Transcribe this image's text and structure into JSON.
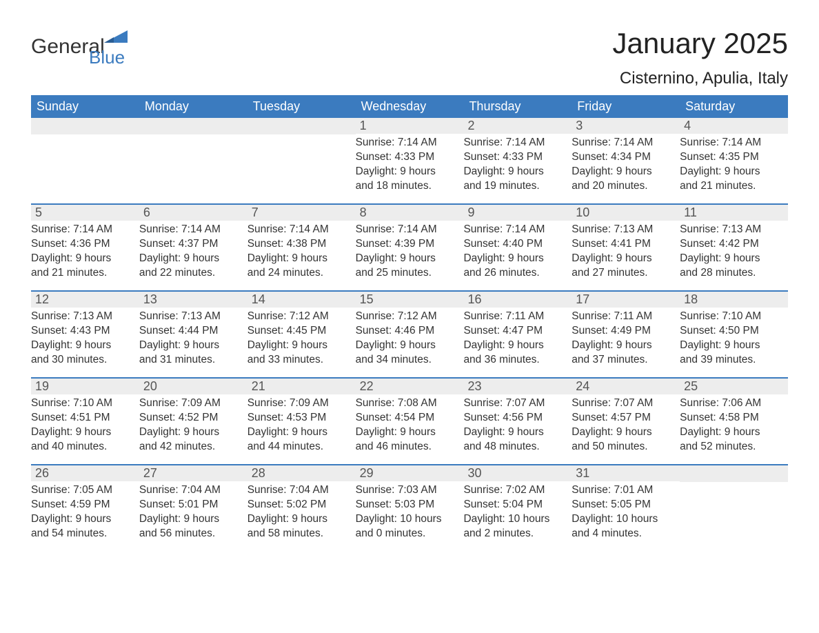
{
  "brand": {
    "word1": "General",
    "word2": "Blue"
  },
  "title": "January 2025",
  "location": "Cisternino, Apulia, Italy",
  "colors": {
    "header_bg": "#3b7bbf",
    "header_text": "#ffffff",
    "daynum_bg": "#ededed",
    "daynum_text": "#555555",
    "body_text": "#333333",
    "rule": "#3b7bbf",
    "page_bg": "#ffffff"
  },
  "fonts": {
    "title_size": 42,
    "location_size": 24,
    "dow_size": 18,
    "daynum_size": 18,
    "info_size": 15.5
  },
  "daysOfWeek": [
    "Sunday",
    "Monday",
    "Tuesday",
    "Wednesday",
    "Thursday",
    "Friday",
    "Saturday"
  ],
  "weeks": [
    [
      {
        "n": "",
        "lines": []
      },
      {
        "n": "",
        "lines": []
      },
      {
        "n": "",
        "lines": []
      },
      {
        "n": "1",
        "lines": [
          "Sunrise: 7:14 AM",
          "Sunset: 4:33 PM",
          "Daylight: 9 hours",
          "and 18 minutes."
        ]
      },
      {
        "n": "2",
        "lines": [
          "Sunrise: 7:14 AM",
          "Sunset: 4:33 PM",
          "Daylight: 9 hours",
          "and 19 minutes."
        ]
      },
      {
        "n": "3",
        "lines": [
          "Sunrise: 7:14 AM",
          "Sunset: 4:34 PM",
          "Daylight: 9 hours",
          "and 20 minutes."
        ]
      },
      {
        "n": "4",
        "lines": [
          "Sunrise: 7:14 AM",
          "Sunset: 4:35 PM",
          "Daylight: 9 hours",
          "and 21 minutes."
        ]
      }
    ],
    [
      {
        "n": "5",
        "lines": [
          "Sunrise: 7:14 AM",
          "Sunset: 4:36 PM",
          "Daylight: 9 hours",
          "and 21 minutes."
        ]
      },
      {
        "n": "6",
        "lines": [
          "Sunrise: 7:14 AM",
          "Sunset: 4:37 PM",
          "Daylight: 9 hours",
          "and 22 minutes."
        ]
      },
      {
        "n": "7",
        "lines": [
          "Sunrise: 7:14 AM",
          "Sunset: 4:38 PM",
          "Daylight: 9 hours",
          "and 24 minutes."
        ]
      },
      {
        "n": "8",
        "lines": [
          "Sunrise: 7:14 AM",
          "Sunset: 4:39 PM",
          "Daylight: 9 hours",
          "and 25 minutes."
        ]
      },
      {
        "n": "9",
        "lines": [
          "Sunrise: 7:14 AM",
          "Sunset: 4:40 PM",
          "Daylight: 9 hours",
          "and 26 minutes."
        ]
      },
      {
        "n": "10",
        "lines": [
          "Sunrise: 7:13 AM",
          "Sunset: 4:41 PM",
          "Daylight: 9 hours",
          "and 27 minutes."
        ]
      },
      {
        "n": "11",
        "lines": [
          "Sunrise: 7:13 AM",
          "Sunset: 4:42 PM",
          "Daylight: 9 hours",
          "and 28 minutes."
        ]
      }
    ],
    [
      {
        "n": "12",
        "lines": [
          "Sunrise: 7:13 AM",
          "Sunset: 4:43 PM",
          "Daylight: 9 hours",
          "and 30 minutes."
        ]
      },
      {
        "n": "13",
        "lines": [
          "Sunrise: 7:13 AM",
          "Sunset: 4:44 PM",
          "Daylight: 9 hours",
          "and 31 minutes."
        ]
      },
      {
        "n": "14",
        "lines": [
          "Sunrise: 7:12 AM",
          "Sunset: 4:45 PM",
          "Daylight: 9 hours",
          "and 33 minutes."
        ]
      },
      {
        "n": "15",
        "lines": [
          "Sunrise: 7:12 AM",
          "Sunset: 4:46 PM",
          "Daylight: 9 hours",
          "and 34 minutes."
        ]
      },
      {
        "n": "16",
        "lines": [
          "Sunrise: 7:11 AM",
          "Sunset: 4:47 PM",
          "Daylight: 9 hours",
          "and 36 minutes."
        ]
      },
      {
        "n": "17",
        "lines": [
          "Sunrise: 7:11 AM",
          "Sunset: 4:49 PM",
          "Daylight: 9 hours",
          "and 37 minutes."
        ]
      },
      {
        "n": "18",
        "lines": [
          "Sunrise: 7:10 AM",
          "Sunset: 4:50 PM",
          "Daylight: 9 hours",
          "and 39 minutes."
        ]
      }
    ],
    [
      {
        "n": "19",
        "lines": [
          "Sunrise: 7:10 AM",
          "Sunset: 4:51 PM",
          "Daylight: 9 hours",
          "and 40 minutes."
        ]
      },
      {
        "n": "20",
        "lines": [
          "Sunrise: 7:09 AM",
          "Sunset: 4:52 PM",
          "Daylight: 9 hours",
          "and 42 minutes."
        ]
      },
      {
        "n": "21",
        "lines": [
          "Sunrise: 7:09 AM",
          "Sunset: 4:53 PM",
          "Daylight: 9 hours",
          "and 44 minutes."
        ]
      },
      {
        "n": "22",
        "lines": [
          "Sunrise: 7:08 AM",
          "Sunset: 4:54 PM",
          "Daylight: 9 hours",
          "and 46 minutes."
        ]
      },
      {
        "n": "23",
        "lines": [
          "Sunrise: 7:07 AM",
          "Sunset: 4:56 PM",
          "Daylight: 9 hours",
          "and 48 minutes."
        ]
      },
      {
        "n": "24",
        "lines": [
          "Sunrise: 7:07 AM",
          "Sunset: 4:57 PM",
          "Daylight: 9 hours",
          "and 50 minutes."
        ]
      },
      {
        "n": "25",
        "lines": [
          "Sunrise: 7:06 AM",
          "Sunset: 4:58 PM",
          "Daylight: 9 hours",
          "and 52 minutes."
        ]
      }
    ],
    [
      {
        "n": "26",
        "lines": [
          "Sunrise: 7:05 AM",
          "Sunset: 4:59 PM",
          "Daylight: 9 hours",
          "and 54 minutes."
        ]
      },
      {
        "n": "27",
        "lines": [
          "Sunrise: 7:04 AM",
          "Sunset: 5:01 PM",
          "Daylight: 9 hours",
          "and 56 minutes."
        ]
      },
      {
        "n": "28",
        "lines": [
          "Sunrise: 7:04 AM",
          "Sunset: 5:02 PM",
          "Daylight: 9 hours",
          "and 58 minutes."
        ]
      },
      {
        "n": "29",
        "lines": [
          "Sunrise: 7:03 AM",
          "Sunset: 5:03 PM",
          "Daylight: 10 hours",
          "and 0 minutes."
        ]
      },
      {
        "n": "30",
        "lines": [
          "Sunrise: 7:02 AM",
          "Sunset: 5:04 PM",
          "Daylight: 10 hours",
          "and 2 minutes."
        ]
      },
      {
        "n": "31",
        "lines": [
          "Sunrise: 7:01 AM",
          "Sunset: 5:05 PM",
          "Daylight: 10 hours",
          "and 4 minutes."
        ]
      },
      {
        "n": "",
        "lines": []
      }
    ]
  ]
}
